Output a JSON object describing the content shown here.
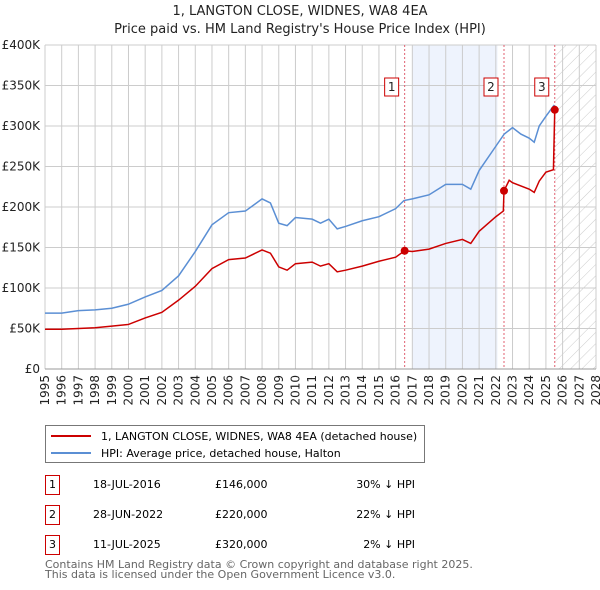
{
  "chart_data": {
    "type": "line",
    "title": "1, LANGTON CLOSE, WIDNES, WA8 4EA",
    "subtitle": "Price paid vs. HM Land Registry's House Price Index (HPI)",
    "xlim": [
      1995,
      2028
    ],
    "ylim": [
      0,
      400000
    ],
    "yticks": [
      0,
      50000,
      100000,
      150000,
      200000,
      250000,
      300000,
      350000,
      400000
    ],
    "ytick_labels": [
      "£0",
      "£50K",
      "£100K",
      "£150K",
      "£200K",
      "£250K",
      "£300K",
      "£350K",
      "£400K"
    ],
    "xticks": [
      "1995",
      "1996",
      "1997",
      "1998",
      "1999",
      "2000",
      "2001",
      "2002",
      "2003",
      "2004",
      "2005",
      "2006",
      "2007",
      "2008",
      "2009",
      "2010",
      "2011",
      "2012",
      "2013",
      "2014",
      "2015",
      "2016",
      "2017",
      "2018",
      "2019",
      "2020",
      "2021",
      "2022",
      "2023",
      "2024",
      "2025",
      "2026",
      "2027",
      "2028"
    ],
    "grid": true,
    "shaded_range": [
      2017.0,
      2022.1
    ],
    "hatched_from": 2025.53,
    "series": [
      {
        "name": "1, LANGTON CLOSE, WIDNES, WA8 4EA (detached house)",
        "color": "#cc0000",
        "x": [
          1995,
          1996,
          1997,
          1998,
          1999,
          2000,
          2001,
          2002,
          2003,
          2004,
          2005,
          2006,
          2007,
          2008,
          2008.5,
          2009,
          2009.5,
          2010,
          2011,
          2011.5,
          2012,
          2012.5,
          2013,
          2014,
          2015,
          2016,
          2016.54,
          2017,
          2018,
          2019,
          2020,
          2020.5,
          2021,
          2022,
          2022.45,
          2022.49,
          2022.8,
          2023,
          2024,
          2024.3,
          2024.6,
          2025,
          2025.45,
          2025.53
        ],
        "y": [
          49000,
          49000,
          50000,
          51000,
          53000,
          55000,
          63000,
          70000,
          85000,
          102000,
          124000,
          135000,
          137000,
          147000,
          143000,
          126000,
          122000,
          130000,
          132000,
          127000,
          130000,
          120000,
          122000,
          127000,
          133000,
          138000,
          146000,
          145000,
          148000,
          155000,
          160000,
          155000,
          170000,
          188000,
          195000,
          220000,
          233000,
          230000,
          222000,
          218000,
          232000,
          243000,
          246000,
          320000
        ]
      },
      {
        "name": "HPI: Average price, detached house, Halton",
        "color": "#5b8fd4",
        "x": [
          1995,
          1996,
          1997,
          1998,
          1999,
          2000,
          2001,
          2002,
          2003,
          2004,
          2005,
          2006,
          2007,
          2008,
          2008.5,
          2009,
          2009.5,
          2010,
          2011,
          2011.5,
          2012,
          2012.5,
          2013,
          2014,
          2015,
          2016,
          2016.5,
          2017,
          2018,
          2019,
          2020,
          2020.5,
          2021,
          2022,
          2022.5,
          2023,
          2023.5,
          2024,
          2024.3,
          2024.6,
          2025,
          2025.5
        ],
        "y": [
          69000,
          69000,
          72000,
          73000,
          75000,
          80000,
          89000,
          97000,
          115000,
          145000,
          178000,
          193000,
          195000,
          210000,
          205000,
          180000,
          177000,
          187000,
          185000,
          180000,
          185000,
          173000,
          176000,
          183000,
          188000,
          198000,
          208000,
          210000,
          215000,
          228000,
          228000,
          222000,
          245000,
          275000,
          290000,
          298000,
          290000,
          285000,
          280000,
          300000,
          312000,
          326000
        ]
      }
    ],
    "sales": [
      {
        "label": "1",
        "x": 2016.54,
        "y": 146000
      },
      {
        "label": "2",
        "x": 2022.49,
        "y": 220000
      },
      {
        "label": "3",
        "x": 2025.53,
        "y": 320000
      }
    ],
    "legend": "below"
  },
  "table": [
    {
      "n": "1",
      "date": "18-JUL-2016",
      "price": "£146,000",
      "hpi": "30% ↓ HPI"
    },
    {
      "n": "2",
      "date": "28-JUN-2022",
      "price": "£220,000",
      "hpi": "22% ↓ HPI"
    },
    {
      "n": "3",
      "date": "11-JUL-2025",
      "price": "£320,000",
      "hpi": "2% ↓ HPI"
    }
  ],
  "footer": [
    "Contains HM Land Registry data © Crown copyright and database right 2025.",
    "This data is licensed under the Open Government Licence v3.0."
  ]
}
